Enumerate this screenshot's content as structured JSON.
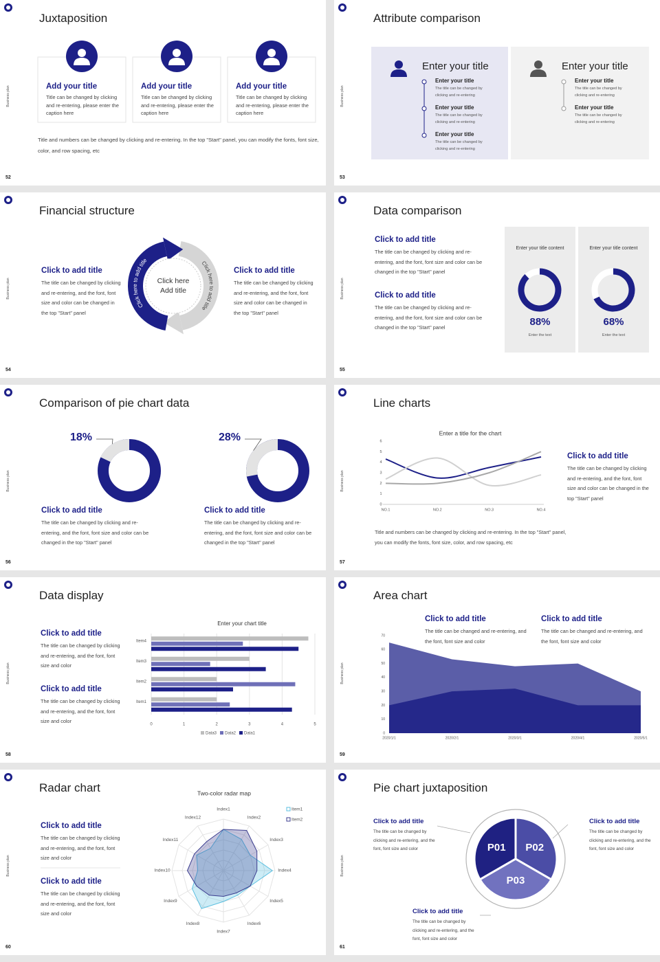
{
  "side_label": "Business plan",
  "slides": [
    {
      "number": 52,
      "title": "Juxtaposition",
      "cards": [
        {
          "heading": "Add your title",
          "text": "Title can be changed by clicking and re-entering, please enter the caption here"
        },
        {
          "heading": "Add your title",
          "text": "Title can be changed by clicking and re-entering, please enter the caption here"
        },
        {
          "heading": "Add your title",
          "text": "Title can be changed by clicking and re-entering, please enter the caption here"
        }
      ],
      "caption": "Title and numbers can be changed by clicking and re-entering. In the top \"Start\" panel, you can modify the fonts, font size, color, and row spacing, etc"
    },
    {
      "number": 53,
      "title": "Attribute comparison",
      "panels": [
        {
          "heading": "Enter your title",
          "items": [
            {
              "heading": "Enter your title",
              "text": "The title can be changed by clicking and re-entering"
            },
            {
              "heading": "Enter your title",
              "text": "The title can be changed by clicking and re-entering"
            },
            {
              "heading": "Enter your title",
              "text": "The title can be changed by clicking and re-entering"
            }
          ]
        },
        {
          "heading": "Enter your title",
          "items": [
            {
              "heading": "Enter your title",
              "text": "The title can be changed by clicking and re-entering"
            },
            {
              "heading": "Enter your title",
              "text": "The title can be changed by clicking and re-entering"
            }
          ]
        }
      ]
    },
    {
      "number": 54,
      "title": "Financial structure",
      "blocks": [
        {
          "heading": "Click to add title",
          "text": "The title can be changed by clicking and re-entering, and the font, font size and color can be changed in the top \"Start\" panel"
        },
        {
          "heading": "Click to add title",
          "text": "The title can be changed by clicking and re-entering, and the font, font size and color can be changed in the top \"Start\" panel"
        }
      ],
      "center": "Click here Add title",
      "arrows": [
        "Click here to add title",
        "Click here to add title"
      ]
    },
    {
      "number": 55,
      "title": "Data comparison",
      "blocks": [
        {
          "heading": "Click to add title",
          "text": "The title can be changed by clicking and re-entering, and the font, font size and color can be changed in the top \"Start\" panel"
        },
        {
          "heading": "Click to add title",
          "text": "The title can be changed by clicking and re-entering, and the font, font size and color can be changed in the top \"Start\" panel"
        }
      ],
      "cards": [
        {
          "heading": "Enter your title content",
          "value": 88,
          "value_label": "88%",
          "text": "Enter the text"
        },
        {
          "heading": "Enter your title content",
          "value": 68,
          "value_label": "68%",
          "text": "Enter the text"
        }
      ]
    },
    {
      "number": 56,
      "title": "Comparison of pie chart data",
      "pies": [
        {
          "value": 18,
          "value_label": "18%",
          "heading": "Click to add title",
          "text": "The title can be changed by clicking and re-entering, and the font, font size and color can be changed in the top \"Start\" panel"
        },
        {
          "value": 28,
          "value_label": "28%",
          "heading": "Click to add title",
          "text": "The title can be changed by clicking and re-entering, and the font, font size and color can be changed in the top \"Start\" panel"
        }
      ]
    },
    {
      "number": 57,
      "title": "Line charts",
      "chart": {
        "type": "line",
        "title": "Enter a title for the chart",
        "categories": [
          "NO.1",
          "NO.2",
          "NO.3",
          "NO.4"
        ],
        "series": [
          {
            "color": "#1d2088",
            "values": [
              4.3,
              2.5,
              3.5,
              4.5
            ]
          },
          {
            "color": "#d0d0d0",
            "values": [
              2.4,
              4.4,
              1.8,
              2.8
            ]
          },
          {
            "color": "#a8a8a8",
            "values": [
              2,
              2,
              3,
              5
            ]
          }
        ],
        "ylim": [
          0,
          6
        ],
        "yticks": [
          0,
          1,
          2,
          3,
          4,
          5,
          6
        ]
      },
      "block": {
        "heading": "Click to add title",
        "text": "The title can be changed by clicking and re-entering, and the font, font size and color can be changed in the top \"Start\" panel"
      },
      "caption": "Title and numbers can be changed by clicking and re-entering. In the top \"Start\" panel, you can modify the fonts, font size, color, and row spacing, etc"
    },
    {
      "number": 58,
      "title": "Data display",
      "blocks": [
        {
          "heading": "Click to add title",
          "text": "The title can be changed by clicking and re-entering, and the font, font size and color"
        },
        {
          "heading": "Click to add title",
          "text": "The title can be changed by clicking and re-entering, and the font, font size and color"
        }
      ],
      "chart": {
        "type": "bar",
        "orientation": "horizontal",
        "title": "Enter your chart title",
        "categories": [
          "Item1",
          "Item2",
          "Item3",
          "Item4"
        ],
        "series": [
          {
            "name": "Data3",
            "color": "#bdbdbd",
            "values": [
              2,
              2,
              3,
              4.8
            ]
          },
          {
            "name": "Data2",
            "color": "#6f70b8",
            "values": [
              2.4,
              4.4,
              1.8,
              2.8
            ]
          },
          {
            "name": "Data1",
            "color": "#1d2088",
            "values": [
              4.3,
              2.5,
              3.5,
              4.5
            ]
          }
        ],
        "xlim": [
          0,
          5
        ],
        "xticks": [
          0,
          1,
          2,
          3,
          4,
          5
        ],
        "grid": true
      }
    },
    {
      "number": 59,
      "title": "Area chart",
      "blocks": [
        {
          "heading": "Click to add title",
          "text": "The title can be changed and re-entering, and the font, font size and color"
        },
        {
          "heading": "Click to add title",
          "text": "The title can be changed and re-entering, and the font, font size and color"
        }
      ],
      "chart": {
        "type": "area",
        "categories": [
          "2020/1/1",
          "2020/2/1",
          "2020/3/1",
          "2020/4/1",
          "2020/5/1"
        ],
        "series": [
          {
            "color": "#5b5ea8",
            "values": [
              65,
              53,
              48,
              50,
              30
            ]
          },
          {
            "color": "#25288a",
            "values": [
              20,
              30,
              32,
              20,
              20
            ]
          }
        ],
        "ylim": [
          0,
          70
        ],
        "yticks": [
          0,
          10,
          20,
          30,
          40,
          50,
          60,
          70
        ]
      }
    },
    {
      "number": 60,
      "title": "Radar chart",
      "blocks": [
        {
          "heading": "Click to add title",
          "text": "The title can be changed by clicking and re-entering, and the font, font size and color"
        },
        {
          "heading": "Click to add title",
          "text": "The title can be changed by clicking and re-entering, and the font, font size and color"
        }
      ],
      "chart": {
        "type": "radar",
        "title": "Two-color radar map",
        "categories": [
          "Index1",
          "Index2",
          "Index3",
          "Index4",
          "Index5",
          "Index6",
          "Index7",
          "Index8",
          "Index9",
          "Index10",
          "Index11",
          "Index12"
        ],
        "series": [
          {
            "name": "Item1",
            "color": "#5bbfe0",
            "values": [
              8,
              7,
              6,
              9.5,
              6,
              5.5,
              6,
              8.5,
              7,
              5,
              6,
              5
            ]
          },
          {
            "name": "Item2",
            "color": "#3b3d8f",
            "values": [
              8,
              9,
              7.5,
              6.5,
              6,
              5,
              5,
              5.5,
              6,
              7,
              6.5,
              6.5
            ]
          }
        ],
        "rlim": [
          0,
          10
        ]
      }
    },
    {
      "number": 61,
      "title": "Pie chart juxtaposition",
      "segments": [
        "P01",
        "P02",
        "P03"
      ],
      "blocks": [
        {
          "heading": "Click to add title",
          "text": "The title can be changed by clicking and re-entering, and the font, font size and color"
        },
        {
          "heading": "Click to add title",
          "text": "The title can be changed by clicking and re-entering, and the font, font size and color"
        },
        {
          "heading": "Click to add title",
          "text": "The title can be changed by clicking and re-entering, and the font, font size and color"
        }
      ]
    }
  ]
}
